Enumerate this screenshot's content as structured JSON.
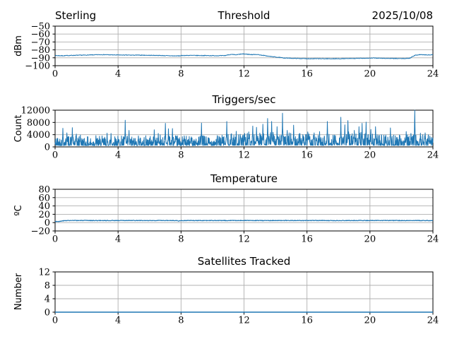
{
  "style": {
    "line_color": "#1f77b4",
    "grid_color": "#b0b0b0",
    "spine_color": "#000000",
    "background": "#ffffff",
    "text_color": "#000000"
  },
  "chart_data": [
    {
      "id": "threshold",
      "type": "line",
      "titles": {
        "left": "Sterling",
        "center": "Threshold",
        "right": "2025/10/08"
      },
      "ylabel": "dBm",
      "xlim": [
        0,
        24
      ],
      "ylim": [
        -100,
        -50
      ],
      "xticks": [
        0,
        4,
        8,
        12,
        16,
        20,
        24
      ],
      "xtick_labels": [
        "0",
        "4",
        "8",
        "12",
        "16",
        "20",
        "24"
      ],
      "yticks": [
        -50,
        -60,
        -70,
        -80,
        -90,
        -100
      ],
      "ytick_labels": [
        "−50",
        "−60",
        "−70",
        "−80",
        "−90",
        "−100"
      ],
      "grid": true,
      "legend": null,
      "line_color": "#1f77b4",
      "stroke": 1,
      "noise_mode": "sym",
      "noise": 0.4,
      "samples": 1100,
      "seed": 7,
      "points": [
        [
          0,
          -87.2
        ],
        [
          0.5,
          -87.4
        ],
        [
          1,
          -87.0
        ],
        [
          1.5,
          -86.8
        ],
        [
          2,
          -86.6
        ],
        [
          2.5,
          -86.3
        ],
        [
          3,
          -86.0
        ],
        [
          3.5,
          -86.3
        ],
        [
          4,
          -86.5
        ],
        [
          5,
          -86.7
        ],
        [
          5.5,
          -86.7
        ],
        [
          6,
          -86.9
        ],
        [
          6.5,
          -87.0
        ],
        [
          7,
          -87.3
        ],
        [
          7.5,
          -87.6
        ],
        [
          7.9,
          -87.6
        ],
        [
          8.1,
          -87.1
        ],
        [
          8.5,
          -87.0
        ],
        [
          9,
          -87.1
        ],
        [
          9.5,
          -87.2
        ],
        [
          10,
          -87.3
        ],
        [
          10.5,
          -87.4
        ],
        [
          10.8,
          -87.2
        ],
        [
          11,
          -86.2
        ],
        [
          11.2,
          -85.9
        ],
        [
          11.5,
          -86.3
        ],
        [
          11.8,
          -85.4
        ],
        [
          12,
          -85.2
        ],
        [
          12.2,
          -85.5
        ],
        [
          12.5,
          -86.0
        ],
        [
          12.8,
          -85.7
        ],
        [
          13,
          -86.4
        ],
        [
          13.3,
          -87.2
        ],
        [
          13.6,
          -88.2
        ],
        [
          14,
          -89.0
        ],
        [
          14.5,
          -90.2
        ],
        [
          15,
          -90.6
        ],
        [
          15.5,
          -90.9
        ],
        [
          16,
          -91.1
        ],
        [
          17,
          -91.2
        ],
        [
          18,
          -91.2
        ],
        [
          18.5,
          -91.0
        ],
        [
          19,
          -90.9
        ],
        [
          19.5,
          -90.6
        ],
        [
          20,
          -90.5
        ],
        [
          20.3,
          -90.3
        ],
        [
          20.7,
          -90.6
        ],
        [
          21,
          -90.7
        ],
        [
          21.5,
          -90.9
        ],
        [
          22,
          -91.0
        ],
        [
          22.3,
          -90.9
        ],
        [
          22.55,
          -90.4
        ],
        [
          22.7,
          -88.3
        ],
        [
          22.85,
          -87.0
        ],
        [
          23,
          -86.4
        ],
        [
          23.2,
          -86.0
        ],
        [
          23.5,
          -86.3
        ],
        [
          23.8,
          -86.5
        ],
        [
          24,
          -86.1
        ]
      ]
    },
    {
      "id": "triggers",
      "type": "line",
      "title": "Triggers/sec",
      "ylabel": "Count",
      "xlim": [
        0,
        24
      ],
      "ylim": [
        0,
        12000
      ],
      "xticks": [
        0,
        4,
        8,
        12,
        16,
        20,
        24
      ],
      "xtick_labels": [
        "0",
        "4",
        "8",
        "12",
        "16",
        "20",
        "24"
      ],
      "yticks": [
        0,
        4000,
        8000,
        12000
      ],
      "ytick_labels": [
        "0",
        "4000",
        "8000",
        "12000"
      ],
      "grid": true,
      "legend": null,
      "line_color": "#1f77b4",
      "stroke": 1,
      "noise_mode": "spiky",
      "noise": 1,
      "samples": 1600,
      "seed": 42,
      "points": [
        [
          0,
          2400
        ],
        [
          1,
          2500
        ],
        [
          2,
          2200
        ],
        [
          3,
          2400
        ],
        [
          4,
          2500
        ],
        [
          5,
          2300
        ],
        [
          6,
          2500
        ],
        [
          7,
          2800
        ],
        [
          8,
          2300
        ],
        [
          9,
          2400
        ],
        [
          10,
          2500
        ],
        [
          11,
          2700
        ],
        [
          12,
          2900
        ],
        [
          13,
          3100
        ],
        [
          14,
          3200
        ],
        [
          15,
          3000
        ],
        [
          16,
          2800
        ],
        [
          17,
          2600
        ],
        [
          18,
          3200
        ],
        [
          19,
          3300
        ],
        [
          20,
          3000
        ],
        [
          21,
          2500
        ],
        [
          22,
          2600
        ],
        [
          23,
          2700
        ],
        [
          24,
          2600
        ]
      ],
      "spikes": [
        [
          0.5,
          6100
        ],
        [
          0.75,
          4600
        ],
        [
          1.1,
          6300
        ],
        [
          1.35,
          4200
        ],
        [
          1.6,
          3900
        ],
        [
          2.6,
          3700
        ],
        [
          3.3,
          4500
        ],
        [
          3.55,
          4400
        ],
        [
          4.45,
          8700
        ],
        [
          4.7,
          5400
        ],
        [
          5.3,
          3600
        ],
        [
          6.3,
          5600
        ],
        [
          6.55,
          4400
        ],
        [
          7.0,
          7700
        ],
        [
          7.2,
          5900
        ],
        [
          7.45,
          6000
        ],
        [
          8.2,
          3600
        ],
        [
          8.65,
          3300
        ],
        [
          9.3,
          7800
        ],
        [
          10.3,
          3700
        ],
        [
          10.9,
          8300
        ],
        [
          11.2,
          4300
        ],
        [
          11.5,
          5100
        ],
        [
          12.05,
          4400
        ],
        [
          12.3,
          4900
        ],
        [
          12.55,
          6800
        ],
        [
          12.8,
          6400
        ],
        [
          13.2,
          7400
        ],
        [
          13.5,
          9300
        ],
        [
          13.75,
          8300
        ],
        [
          14.1,
          6600
        ],
        [
          14.45,
          11000
        ],
        [
          14.75,
          5400
        ],
        [
          15.15,
          7100
        ],
        [
          15.55,
          4400
        ],
        [
          16.05,
          4900
        ],
        [
          16.45,
          4600
        ],
        [
          16.8,
          5000
        ],
        [
          17.3,
          8300
        ],
        [
          17.8,
          3700
        ],
        [
          18.15,
          9700
        ],
        [
          18.4,
          7200
        ],
        [
          18.6,
          8600
        ],
        [
          19.0,
          5400
        ],
        [
          19.3,
          6600
        ],
        [
          19.5,
          7700
        ],
        [
          19.75,
          8100
        ],
        [
          20.05,
          5700
        ],
        [
          20.35,
          6600
        ],
        [
          21.0,
          3900
        ],
        [
          21.3,
          6200
        ],
        [
          21.9,
          3700
        ],
        [
          22.3,
          5000
        ],
        [
          22.6,
          4400
        ],
        [
          22.85,
          12300
        ],
        [
          23.2,
          4500
        ],
        [
          23.5,
          4600
        ],
        [
          23.8,
          3500
        ]
      ]
    },
    {
      "id": "temperature",
      "type": "line",
      "title": "Temperature",
      "ylabel": "ºC",
      "xlim": [
        0,
        24
      ],
      "ylim": [
        -20,
        80
      ],
      "xticks": [
        0,
        4,
        8,
        12,
        16,
        20,
        24
      ],
      "xtick_labels": [
        "0",
        "4",
        "8",
        "12",
        "16",
        "20",
        "24"
      ],
      "yticks": [
        -20,
        0,
        20,
        40,
        60,
        80
      ],
      "ytick_labels": [
        "−20",
        "0",
        "20",
        "40",
        "60",
        "80"
      ],
      "grid": true,
      "legend": null,
      "line_color": "#1f77b4",
      "stroke": 1.2,
      "noise_mode": "sym",
      "noise": 0.7,
      "samples": 1100,
      "seed": 3,
      "points": [
        [
          0,
          2.8
        ],
        [
          0.3,
          2.8
        ],
        [
          0.5,
          4.3
        ],
        [
          0.7,
          5
        ],
        [
          5.7,
          5
        ],
        [
          5.78,
          4.2
        ],
        [
          5.9,
          5
        ],
        [
          7.75,
          5
        ],
        [
          7.85,
          4.0
        ],
        [
          7.95,
          5
        ],
        [
          24,
          5
        ]
      ]
    },
    {
      "id": "satellites",
      "type": "line",
      "title": "Satellites Tracked",
      "ylabel": "Number",
      "xlim": [
        0,
        24
      ],
      "ylim": [
        0,
        12
      ],
      "xticks": [
        0,
        4,
        8,
        12,
        16,
        20,
        24
      ],
      "xtick_labels": [
        "0",
        "4",
        "8",
        "12",
        "16",
        "20",
        "24"
      ],
      "yticks": [
        0,
        4,
        8,
        12
      ],
      "ytick_labels": [
        "0",
        "4",
        "8",
        "12"
      ],
      "grid": true,
      "legend": null,
      "line_color": "#1f77b4",
      "stroke": 1.5,
      "noise_mode": "sym",
      "noise": 0,
      "samples": 60,
      "seed": 1,
      "points": [
        [
          0,
          0
        ],
        [
          24,
          0
        ]
      ]
    }
  ]
}
